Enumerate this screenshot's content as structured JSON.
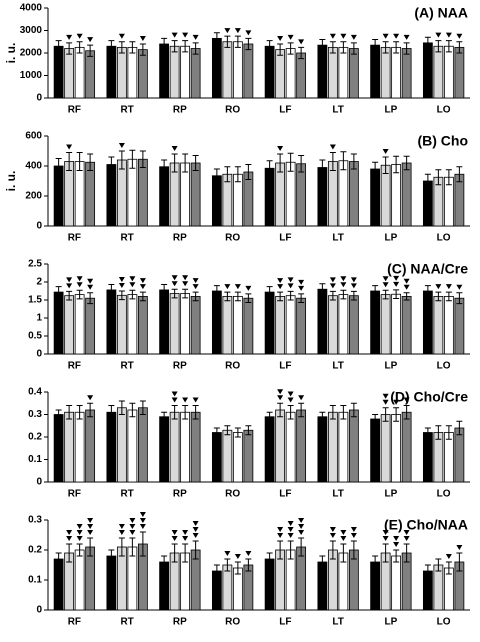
{
  "chart_data": [
    {
      "type": "bar",
      "title": "(A) NAA",
      "ylabel": "i. u.",
      "categories": [
        "RF",
        "RT",
        "RP",
        "RO",
        "LF",
        "LT",
        "LP",
        "LO"
      ],
      "ylim": [
        0,
        4000
      ],
      "yticks": [
        0,
        1000,
        2000,
        3000,
        4000
      ],
      "series": [
        {
          "color": "#000000",
          "values": [
            2300,
            2300,
            2400,
            2650,
            2300,
            2350,
            2350,
            2450
          ],
          "errors": [
            250,
            250,
            250,
            250,
            250,
            250,
            250,
            250
          ],
          "markers": [
            0,
            0,
            0,
            0,
            0,
            0,
            0,
            0
          ]
        },
        {
          "color": "#d9d9d9",
          "values": [
            2200,
            2250,
            2300,
            2500,
            2150,
            2250,
            2250,
            2300
          ],
          "errors": [
            250,
            250,
            250,
            250,
            250,
            250,
            250,
            250
          ],
          "markers": [
            1,
            1,
            1,
            1,
            1,
            1,
            1,
            1
          ]
        },
        {
          "color": "#ffffff",
          "values": [
            2250,
            2250,
            2300,
            2500,
            2200,
            2250,
            2250,
            2300
          ],
          "errors": [
            250,
            250,
            250,
            250,
            250,
            250,
            250,
            250
          ],
          "markers": [
            1,
            0,
            1,
            1,
            1,
            1,
            1,
            1
          ]
        },
        {
          "color": "#808080",
          "values": [
            2100,
            2150,
            2200,
            2400,
            2000,
            2200,
            2200,
            2250
          ],
          "errors": [
            250,
            250,
            250,
            250,
            250,
            250,
            250,
            250
          ],
          "markers": [
            1,
            1,
            1,
            1,
            1,
            1,
            1,
            1
          ]
        }
      ]
    },
    {
      "type": "bar",
      "title": "(B) Cho",
      "ylabel": "i. u.",
      "categories": [
        "RF",
        "RT",
        "RP",
        "RO",
        "LF",
        "LT",
        "LP",
        "LO"
      ],
      "ylim": [
        0,
        600
      ],
      "yticks": [
        0,
        200,
        400,
        600
      ],
      "series": [
        {
          "color": "#000000",
          "values": [
            400,
            410,
            395,
            335,
            385,
            390,
            380,
            300
          ],
          "errors": [
            50,
            50,
            45,
            45,
            50,
            50,
            45,
            45
          ],
          "markers": [
            0,
            0,
            0,
            0,
            0,
            0,
            0,
            0
          ]
        },
        {
          "color": "#d9d9d9",
          "values": [
            430,
            440,
            420,
            345,
            420,
            430,
            405,
            325
          ],
          "errors": [
            60,
            60,
            60,
            50,
            60,
            60,
            55,
            50
          ],
          "markers": [
            1,
            1,
            1,
            0,
            1,
            1,
            1,
            0
          ]
        },
        {
          "color": "#ffffff",
          "values": [
            430,
            445,
            420,
            345,
            425,
            435,
            410,
            325
          ],
          "errors": [
            60,
            60,
            60,
            50,
            60,
            60,
            55,
            50
          ],
          "markers": [
            0,
            0,
            0,
            0,
            0,
            0,
            0,
            0
          ]
        },
        {
          "color": "#808080",
          "values": [
            425,
            445,
            420,
            360,
            415,
            430,
            420,
            345
          ],
          "errors": [
            55,
            55,
            50,
            50,
            55,
            50,
            45,
            50
          ],
          "markers": [
            0,
            0,
            0,
            0,
            0,
            0,
            0,
            0
          ]
        }
      ]
    },
    {
      "type": "bar",
      "title": "(C) NAA/Cre",
      "categories": [
        "RF",
        "RT",
        "RP",
        "RO",
        "LF",
        "LT",
        "LP",
        "LO"
      ],
      "ylim": [
        0,
        2.5
      ],
      "yticks": [
        0,
        0.5,
        1,
        1.5,
        2,
        2.5
      ],
      "series": [
        {
          "color": "#000000",
          "values": [
            1.72,
            1.78,
            1.78,
            1.75,
            1.72,
            1.8,
            1.75,
            1.75
          ],
          "errors": [
            0.15,
            0.15,
            0.15,
            0.15,
            0.15,
            0.15,
            0.15,
            0.15
          ],
          "markers": [
            0,
            0,
            0,
            0,
            0,
            0,
            0,
            0
          ]
        },
        {
          "color": "#d9d9d9",
          "values": [
            1.62,
            1.63,
            1.68,
            1.6,
            1.6,
            1.62,
            1.65,
            1.6
          ],
          "errors": [
            0.12,
            0.12,
            0.12,
            0.12,
            0.12,
            0.12,
            0.12,
            0.12
          ],
          "markers": [
            2,
            2,
            2,
            1,
            2,
            2,
            2,
            1
          ]
        },
        {
          "color": "#ffffff",
          "values": [
            1.65,
            1.65,
            1.68,
            1.6,
            1.62,
            1.65,
            1.66,
            1.6
          ],
          "errors": [
            0.12,
            0.12,
            0.12,
            0.12,
            0.12,
            0.12,
            0.12,
            0.12
          ],
          "markers": [
            2,
            2,
            2,
            1,
            2,
            2,
            2,
            1
          ]
        },
        {
          "color": "#808080",
          "values": [
            1.55,
            1.6,
            1.6,
            1.55,
            1.55,
            1.62,
            1.6,
            1.55
          ],
          "errors": [
            0.15,
            0.12,
            0.12,
            0.12,
            0.12,
            0.12,
            0.1,
            0.15
          ],
          "markers": [
            2,
            2,
            2,
            1,
            2,
            2,
            2,
            1
          ]
        }
      ]
    },
    {
      "type": "bar",
      "title": "(D) Cho/Cre",
      "categories": [
        "RF",
        "RT",
        "RP",
        "RO",
        "LF",
        "LT",
        "LP",
        "LO"
      ],
      "ylim": [
        0,
        0.4
      ],
      "yticks": [
        0,
        0.1,
        0.2,
        0.3,
        0.4
      ],
      "series": [
        {
          "color": "#000000",
          "values": [
            0.3,
            0.31,
            0.29,
            0.22,
            0.29,
            0.29,
            0.28,
            0.22
          ],
          "errors": [
            0.02,
            0.03,
            0.02,
            0.02,
            0.02,
            0.02,
            0.02,
            0.02
          ],
          "markers": [
            0,
            0,
            0,
            0,
            0,
            0,
            0,
            0
          ]
        },
        {
          "color": "#d9d9d9",
          "values": [
            0.31,
            0.33,
            0.31,
            0.23,
            0.32,
            0.31,
            0.3,
            0.22
          ],
          "errors": [
            0.03,
            0.03,
            0.03,
            0.02,
            0.03,
            0.03,
            0.03,
            0.03
          ],
          "markers": [
            0,
            0,
            2,
            0,
            2,
            0,
            2,
            0
          ]
        },
        {
          "color": "#ffffff",
          "values": [
            0.31,
            0.32,
            0.31,
            0.22,
            0.31,
            0.31,
            0.3,
            0.22
          ],
          "errors": [
            0.03,
            0.03,
            0.03,
            0.02,
            0.03,
            0.03,
            0.03,
            0.03
          ],
          "markers": [
            0,
            0,
            1,
            0,
            2,
            0,
            1,
            0
          ]
        },
        {
          "color": "#808080",
          "values": [
            0.32,
            0.33,
            0.31,
            0.23,
            0.32,
            0.32,
            0.31,
            0.24
          ],
          "errors": [
            0.03,
            0.03,
            0.03,
            0.02,
            0.03,
            0.03,
            0.03,
            0.03
          ],
          "markers": [
            1,
            0,
            1,
            0,
            1,
            0,
            1,
            0
          ]
        }
      ]
    },
    {
      "type": "bar",
      "title": "(E) Cho/NAA",
      "categories": [
        "RF",
        "RT",
        "RP",
        "RO",
        "LF",
        "LT",
        "LP",
        "LO"
      ],
      "ylim": [
        0,
        0.3
      ],
      "yticks": [
        0,
        0.1,
        0.2,
        0.3
      ],
      "series": [
        {
          "color": "#000000",
          "values": [
            0.17,
            0.18,
            0.16,
            0.13,
            0.17,
            0.16,
            0.16,
            0.13
          ],
          "errors": [
            0.02,
            0.02,
            0.02,
            0.02,
            0.02,
            0.02,
            0.02,
            0.02
          ],
          "markers": [
            0,
            0,
            0,
            0,
            0,
            0,
            0,
            0
          ]
        },
        {
          "color": "#d9d9d9",
          "values": [
            0.19,
            0.21,
            0.19,
            0.15,
            0.2,
            0.2,
            0.19,
            0.15
          ],
          "errors": [
            0.03,
            0.03,
            0.03,
            0.02,
            0.03,
            0.03,
            0.03,
            0.02
          ],
          "markers": [
            2,
            2,
            2,
            1,
            2,
            2,
            2,
            0
          ]
        },
        {
          "color": "#ffffff",
          "values": [
            0.2,
            0.21,
            0.19,
            0.14,
            0.2,
            0.19,
            0.18,
            0.14
          ],
          "errors": [
            0.02,
            0.03,
            0.03,
            0.02,
            0.03,
            0.03,
            0.02,
            0.02
          ],
          "markers": [
            3,
            3,
            2,
            1,
            3,
            2,
            2,
            1
          ]
        },
        {
          "color": "#808080",
          "values": [
            0.21,
            0.22,
            0.2,
            0.15,
            0.21,
            0.2,
            0.19,
            0.16
          ],
          "errors": [
            0.03,
            0.04,
            0.03,
            0.02,
            0.03,
            0.03,
            0.03,
            0.03
          ],
          "markers": [
            3,
            3,
            3,
            1,
            3,
            2,
            2,
            1
          ]
        }
      ]
    }
  ]
}
